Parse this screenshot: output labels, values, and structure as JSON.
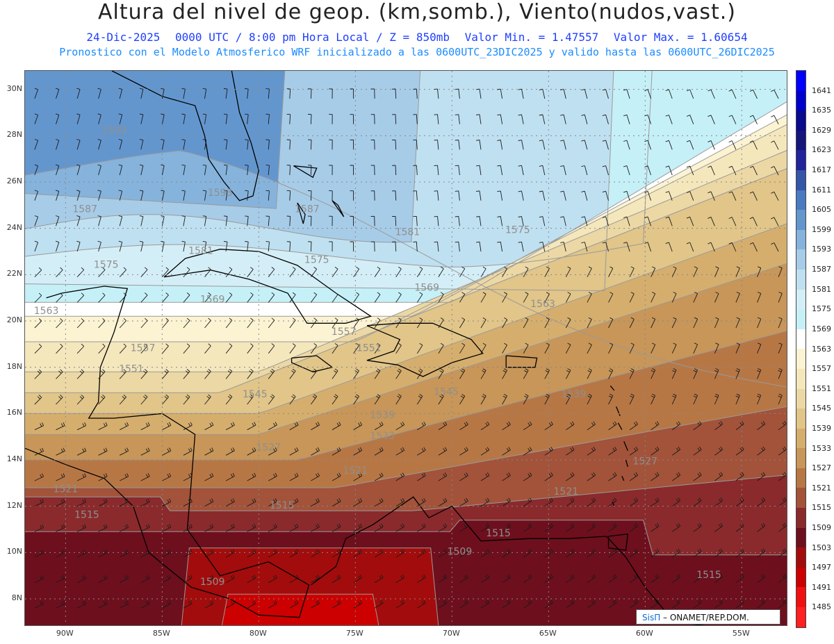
{
  "header": {
    "title": "Altura del nivel de geop. (km,somb.), Viento(nudos,vast.)",
    "date": "24-Dic-2025",
    "time": "0000 UTC / 8:00 pm Hora Local / Z = 850mb",
    "min": "Valor Min. = 1.47557",
    "max": "Valor Max. = 1.60654",
    "model_line": "Pronostico con el Modelo Atmosferico WRF inicializado a las 0600UTC_23DIC2025 y valido hasta las  0600UTC_26DIC2025"
  },
  "map": {
    "lon_range": [
      -92.1,
      -52.6
    ],
    "lat_range": [
      6.8,
      30.8
    ],
    "lat_ticks": [
      "30N",
      "28N",
      "26N",
      "24N",
      "22N",
      "20N",
      "18N",
      "16N",
      "14N",
      "12N",
      "10N",
      "8N"
    ],
    "lon_ticks": [
      "90W",
      "85W",
      "80W",
      "75W",
      "70W",
      "65W",
      "60W",
      "55W"
    ],
    "contour_labels": [
      {
        "text": "1599",
        "lon": -87.5,
        "lat": 28.1
      },
      {
        "text": "1593",
        "lon": -82.0,
        "lat": 25.4
      },
      {
        "text": "1587",
        "lon": -89.0,
        "lat": 24.7
      },
      {
        "text": "1587",
        "lon": -77.5,
        "lat": 24.7
      },
      {
        "text": "1581",
        "lon": -72.3,
        "lat": 23.7
      },
      {
        "text": "1581",
        "lon": -83.0,
        "lat": 22.9
      },
      {
        "text": "1575",
        "lon": -66.6,
        "lat": 23.8
      },
      {
        "text": "1575",
        "lon": -87.9,
        "lat": 22.3
      },
      {
        "text": "1575",
        "lon": -77.0,
        "lat": 22.5
      },
      {
        "text": "1569",
        "lon": -82.4,
        "lat": 20.8
      },
      {
        "text": "1569",
        "lon": -71.3,
        "lat": 21.3
      },
      {
        "text": "1563",
        "lon": -91.0,
        "lat": 20.3
      },
      {
        "text": "1563",
        "lon": -65.3,
        "lat": 20.6
      },
      {
        "text": "1557",
        "lon": -86.0,
        "lat": 18.7
      },
      {
        "text": "1557",
        "lon": -75.6,
        "lat": 19.4
      },
      {
        "text": "1551",
        "lon": -86.6,
        "lat": 17.8
      },
      {
        "text": "1551",
        "lon": -74.3,
        "lat": 18.7
      },
      {
        "text": "1545",
        "lon": -80.2,
        "lat": 16.7
      },
      {
        "text": "1545",
        "lon": -70.3,
        "lat": 16.8
      },
      {
        "text": "1539",
        "lon": -73.6,
        "lat": 15.8
      },
      {
        "text": "1539",
        "lon": -63.7,
        "lat": 16.7
      },
      {
        "text": "1533",
        "lon": -73.6,
        "lat": 14.9
      },
      {
        "text": "1527",
        "lon": -79.5,
        "lat": 14.4
      },
      {
        "text": "1527",
        "lon": -60.0,
        "lat": 13.8
      },
      {
        "text": "1521",
        "lon": -90.0,
        "lat": 12.6
      },
      {
        "text": "1521",
        "lon": -75.0,
        "lat": 13.4
      },
      {
        "text": "1521",
        "lon": -64.1,
        "lat": 12.5
      },
      {
        "text": "1515",
        "lon": -88.9,
        "lat": 11.5
      },
      {
        "text": "1515",
        "lon": -78.8,
        "lat": 11.9
      },
      {
        "text": "1515",
        "lon": -67.6,
        "lat": 10.7
      },
      {
        "text": "1515",
        "lon": -56.7,
        "lat": 8.9
      },
      {
        "text": "1509",
        "lon": -69.6,
        "lat": 9.9
      },
      {
        "text": "1509",
        "lon": -82.4,
        "lat": 8.6
      }
    ]
  },
  "colorbar": {
    "levels": [
      {
        "label": "1641",
        "color": "#0000ff"
      },
      {
        "label": "1635",
        "color": "#0000cc"
      },
      {
        "label": "1629",
        "color": "#0a0a8c"
      },
      {
        "label": "1623",
        "color": "#15157a"
      },
      {
        "label": "1617",
        "color": "#23239c"
      },
      {
        "label": "1611",
        "color": "#3455a8"
      },
      {
        "label": "1605",
        "color": "#4a7bc0"
      },
      {
        "label": "1599",
        "color": "#6496ce"
      },
      {
        "label": "1593",
        "color": "#85b3dc"
      },
      {
        "label": "1587",
        "color": "#a7cce8"
      },
      {
        "label": "1581",
        "color": "#bfe0f0"
      },
      {
        "label": "1575",
        "color": "#d4eef7"
      },
      {
        "label": "1569",
        "color": "#c6f0f7"
      },
      {
        "label": "1563",
        "color": "#ffffff"
      },
      {
        "label": "1557",
        "color": "#fbf3d2"
      },
      {
        "label": "1551",
        "color": "#f5e7bc"
      },
      {
        "label": "1545",
        "color": "#ecd8a4"
      },
      {
        "label": "1539",
        "color": "#e1c589"
      },
      {
        "label": "1533",
        "color": "#d5ae6e"
      },
      {
        "label": "1527",
        "color": "#c79658"
      },
      {
        "label": "1521",
        "color": "#b77745"
      },
      {
        "label": "1515",
        "color": "#a2533a"
      },
      {
        "label": "1509",
        "color": "#8a2a2c"
      },
      {
        "label": "1503",
        "color": "#6e0f1d"
      },
      {
        "label": "1497",
        "color": "#a30c0c"
      },
      {
        "label": "1491",
        "color": "#cc0000"
      },
      {
        "label": "1485",
        "color": "#f01010"
      },
      {
        "label": "",
        "color": "#ff2020"
      }
    ]
  },
  "credit": {
    "brand": "SisΠ",
    "text": " – ONAMET/REP.DOM."
  }
}
